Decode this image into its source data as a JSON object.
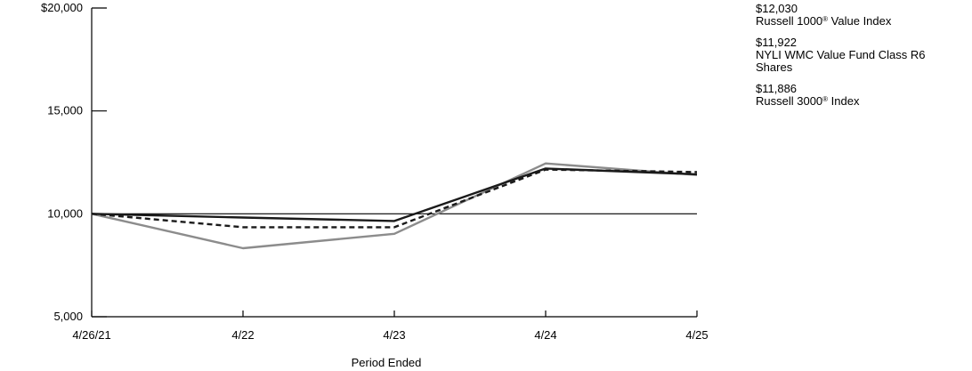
{
  "chart_data": {
    "type": "line",
    "x": [
      "4/26/21",
      "4/22",
      "4/23",
      "4/24",
      "4/25"
    ],
    "xlabel": "Period Ended",
    "ylabel": "",
    "ylim": [
      5000,
      20000
    ],
    "yticks": [
      5000,
      10000,
      15000,
      20000
    ],
    "ytick_labels": [
      "5,000",
      "10,000",
      "15,000",
      "$20,000"
    ],
    "reference_line": 10000,
    "grid": false,
    "legend_position": "top-right",
    "series": [
      {
        "name_parts": [
          "Russell 1000",
          "®",
          " Value Index"
        ],
        "end_value_label": "$12,030",
        "style": "dashed",
        "color": "#1a1a1a",
        "values": [
          10000,
          9350,
          9350,
          12150,
          12030
        ]
      },
      {
        "name_parts": [
          "NYLI WMC Value Fund Class R6 Shares"
        ],
        "end_value_label": "$11,922",
        "style": "solid",
        "color": "#1a1a1a",
        "values": [
          10000,
          9820,
          9650,
          12200,
          11922
        ]
      },
      {
        "name_parts": [
          "Russell 3000",
          "®",
          " Index"
        ],
        "end_value_label": "$11,886",
        "style": "solid",
        "color": "#8c8c8c",
        "values": [
          10000,
          8330,
          9030,
          12450,
          11886
        ]
      }
    ]
  }
}
